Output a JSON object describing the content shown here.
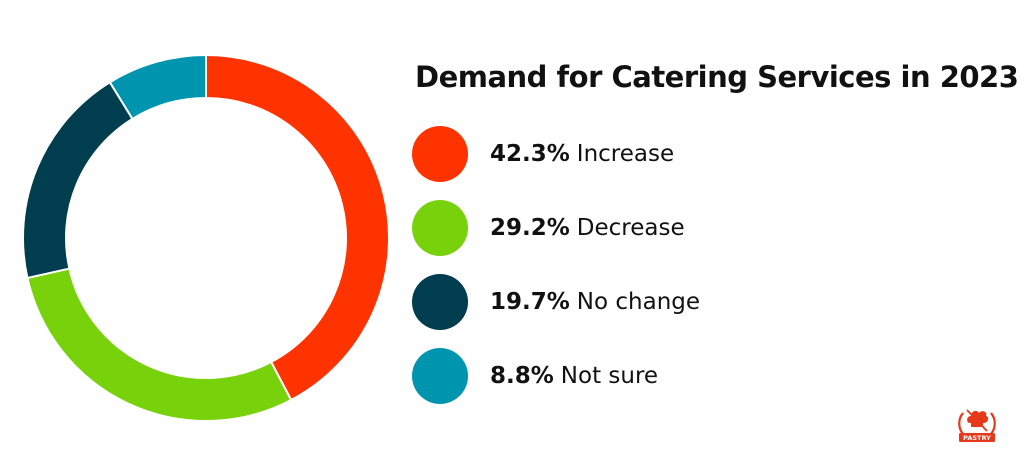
{
  "chart_data": {
    "type": "pie",
    "title": "Demand for Catering Services in 2023",
    "donut": true,
    "legend_placement": "right",
    "slices": [
      {
        "value": 42.3,
        "value_label": "42.3%",
        "label": "Increase",
        "color": "#FF3300"
      },
      {
        "value": 29.2,
        "value_label": "29.2%",
        "label": "Decrease",
        "color": "#77D10B"
      },
      {
        "value": 19.7,
        "value_label": "19.7%",
        "label": "No change",
        "color": "#003D4F"
      },
      {
        "value": 8.8,
        "value_label": "8.8%",
        "label": "Not sure",
        "color": "#0095AF"
      }
    ]
  },
  "logo": {
    "text": "PASTRY",
    "icon": "chef-hat-whisk-logo",
    "color": "#E5391A"
  }
}
